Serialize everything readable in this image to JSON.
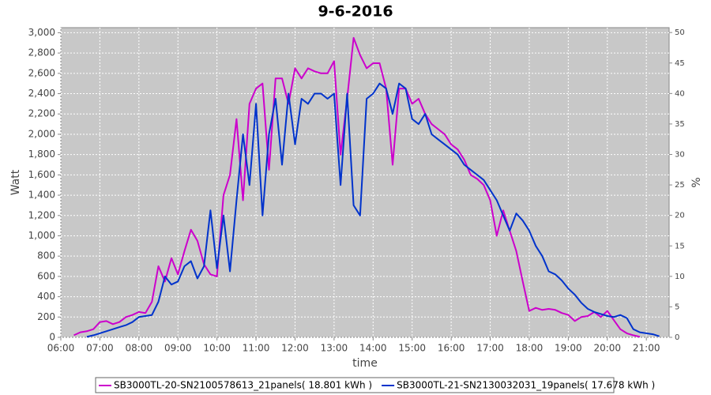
{
  "chart_data": {
    "type": "line",
    "title": "9-6-2016",
    "x_label": "time",
    "y_label": "Watt",
    "y2_label": "%",
    "x": [
      "06:10",
      "06:20",
      "06:30",
      "06:40",
      "06:50",
      "07:00",
      "07:10",
      "07:20",
      "07:30",
      "07:40",
      "07:50",
      "08:00",
      "08:10",
      "08:20",
      "08:30",
      "08:40",
      "08:50",
      "09:00",
      "09:10",
      "09:20",
      "09:30",
      "09:40",
      "09:50",
      "10:00",
      "10:10",
      "10:20",
      "10:30",
      "10:40",
      "10:50",
      "11:00",
      "11:10",
      "11:20",
      "11:30",
      "11:40",
      "11:50",
      "12:00",
      "12:10",
      "12:20",
      "12:30",
      "12:40",
      "12:50",
      "13:00",
      "13:10",
      "13:20",
      "13:30",
      "13:40",
      "13:50",
      "14:00",
      "14:10",
      "14:20",
      "14:30",
      "14:40",
      "14:50",
      "15:00",
      "15:10",
      "15:20",
      "15:30",
      "15:40",
      "15:50",
      "16:00",
      "16:10",
      "16:20",
      "16:30",
      "16:40",
      "16:50",
      "17:00",
      "17:10",
      "17:20",
      "17:30",
      "17:40",
      "17:50",
      "18:00",
      "18:10",
      "18:20",
      "18:30",
      "18:40",
      "18:50",
      "19:00",
      "19:10",
      "19:20",
      "19:30",
      "19:40",
      "19:50",
      "20:00",
      "20:10",
      "20:20",
      "20:30",
      "20:40",
      "20:50",
      "21:00",
      "21:10",
      "21:20"
    ],
    "series": [
      {
        "name": "SB3000TL-20-SN2100578613_21panels( 18.801 kWh )",
        "color": "#cc00cc",
        "values": [
          null,
          20,
          50,
          60,
          80,
          150,
          160,
          130,
          150,
          200,
          220,
          250,
          240,
          350,
          700,
          550,
          780,
          620,
          850,
          1060,
          950,
          720,
          620,
          600,
          1400,
          1600,
          2150,
          1350,
          2300,
          2450,
          2500,
          1650,
          2550,
          2550,
          2300,
          2650,
          2550,
          2650,
          2620,
          2600,
          2600,
          2720,
          1800,
          2350,
          2950,
          2780,
          2650,
          2700,
          2700,
          2450,
          1700,
          2450,
          2450,
          2300,
          2350,
          2200,
          2100,
          2050,
          2000,
          1900,
          1850,
          1750,
          1600,
          1560,
          1500,
          1350,
          1000,
          1250,
          1050,
          850,
          550,
          260,
          290,
          270,
          280,
          270,
          240,
          220,
          160,
          200,
          210,
          250,
          200,
          260,
          170,
          80,
          40,
          20,
          5,
          null,
          null,
          null
        ]
      },
      {
        "name": "SB3000TL-21-SN2130032031_19panels( 17.678 kWh )",
        "color": "#0033cc",
        "values": [
          null,
          null,
          null,
          5,
          20,
          40,
          60,
          80,
          100,
          120,
          150,
          200,
          210,
          220,
          350,
          600,
          520,
          550,
          700,
          750,
          580,
          700,
          1250,
          680,
          1200,
          650,
          1350,
          2000,
          1500,
          2300,
          1200,
          2000,
          2350,
          1700,
          2400,
          1900,
          2350,
          2300,
          2400,
          2400,
          2350,
          2400,
          1500,
          2400,
          1300,
          1200,
          2350,
          2400,
          2500,
          2450,
          2200,
          2500,
          2450,
          2150,
          2100,
          2200,
          2000,
          1950,
          1900,
          1850,
          1800,
          1700,
          1650,
          1600,
          1550,
          1450,
          1350,
          1200,
          1050,
          1220,
          1150,
          1050,
          900,
          800,
          650,
          620,
          560,
          480,
          420,
          340,
          280,
          250,
          230,
          210,
          200,
          220,
          190,
          80,
          50,
          40,
          30,
          10
        ]
      }
    ],
    "xlim": [
      "06:00",
      "21:35"
    ],
    "xticks": [
      "06:00",
      "07:00",
      "08:00",
      "09:00",
      "10:00",
      "11:00",
      "12:00",
      "13:00",
      "14:00",
      "15:00",
      "16:00",
      "17:00",
      "18:00",
      "19:00",
      "20:00",
      "21:00"
    ],
    "ylim": [
      0,
      3050
    ],
    "yticks": [
      0,
      200,
      400,
      600,
      800,
      {
        "value": 1000,
        "label": "1,000"
      },
      {
        "value": 1200,
        "label": "1,200"
      },
      {
        "value": 1400,
        "label": "1,400"
      },
      {
        "value": 1600,
        "label": "1,600"
      },
      {
        "value": 1800,
        "label": "1,800"
      },
      {
        "value": 2000,
        "label": "2,000"
      },
      {
        "value": 2200,
        "label": "2,200"
      },
      {
        "value": 2400,
        "label": "2,400"
      },
      {
        "value": 2600,
        "label": "2,600"
      },
      {
        "value": 2800,
        "label": "2,800"
      },
      {
        "value": 3000,
        "label": "3,000"
      }
    ],
    "y2lim": [
      0,
      50.8
    ],
    "y2ticks": [
      0,
      5,
      10,
      15,
      20,
      25,
      30,
      35,
      40,
      45,
      50
    ],
    "grid": true,
    "legend": "bottom"
  }
}
